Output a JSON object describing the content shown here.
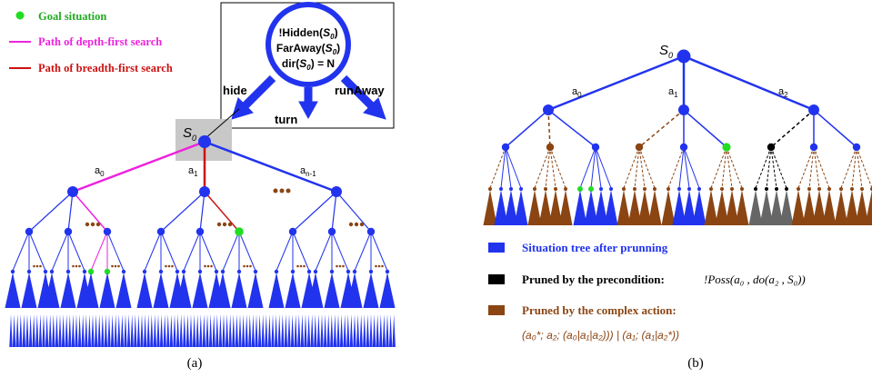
{
  "colors": {
    "blue": "#2233ee",
    "magenta": "#ee22dd",
    "red": "#cc1111",
    "green": "#22dd22",
    "brown": "#8b4513",
    "black": "#000000",
    "gray": "#666666",
    "highlight": "#c8c8c8"
  },
  "left": {
    "legend": {
      "goal": "Goal situation",
      "dfs": "Path of depth-first search",
      "bfs": "Path of breadth-first search"
    },
    "box": {
      "line1": "!Hidden(",
      "line2": "FarAway(",
      "line3a": "dir(",
      "line3b": ") = N",
      "s0": "S",
      "s0sub": "0",
      "close": ")"
    },
    "actions": {
      "hide": "hide",
      "turn": "turn",
      "runaway": "runAway"
    },
    "root": {
      "label": "S",
      "sub": "0"
    },
    "edges": {
      "a0": "a",
      "a0sub": "0",
      "a1": "a",
      "a1sub": "1",
      "an": "a",
      "ansub": "n-1"
    },
    "caption": "(a)"
  },
  "right": {
    "root": {
      "label": "S",
      "sub": "0"
    },
    "edges": {
      "a0": "a",
      "a0sub": "0",
      "a1": "a",
      "a1sub": "1",
      "a2": "a",
      "a2sub": "2"
    },
    "legend": {
      "blue": "Situation tree after prunning",
      "black": "Pruned by the precondition:",
      "black_formula": "!Poss(a₀ , do(a₂ , S₀))",
      "brown": "Pruned by the complex action:",
      "brown_formula": "(a₀*; a₂;  (a₀|a₁|a₂))) | (a₁; (a₁|a₂*))"
    },
    "caption": "(b)"
  }
}
